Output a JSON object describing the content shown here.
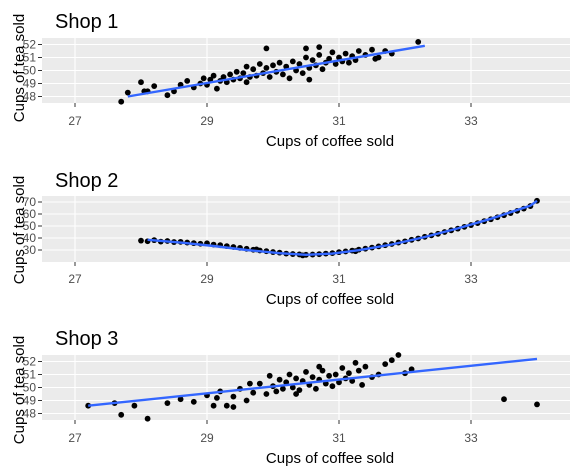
{
  "colors": {
    "panel": "#ebebeb",
    "grid": "#ffffff",
    "point": "#000000",
    "trend": "#3366ff",
    "tick_text": "#4d4d4d",
    "tick_mark": "#333333"
  },
  "chart_data": [
    {
      "type": "scatter",
      "title": "Shop 1",
      "xlabel": "Cups of coffee sold",
      "ylabel": "Cups of tea sold",
      "xlim": [
        26.5,
        34.5
      ],
      "ylim": [
        47.5,
        52.5
      ],
      "xticks": [
        27,
        29,
        31,
        33
      ],
      "yticks": [
        48,
        49,
        50,
        51,
        52
      ],
      "trend": "linear",
      "trend_points": [
        [
          27.8,
          48.0
        ],
        [
          32.3,
          51.9
        ]
      ],
      "points": [
        [
          27.7,
          47.6
        ],
        [
          27.8,
          48.3
        ],
        [
          28.0,
          49.1
        ],
        [
          28.1,
          48.4
        ],
        [
          28.2,
          48.8
        ],
        [
          28.4,
          48.1
        ],
        [
          28.5,
          48.4
        ],
        [
          28.6,
          48.9
        ],
        [
          28.7,
          49.2
        ],
        [
          28.8,
          48.7
        ],
        [
          28.9,
          49.0
        ],
        [
          28.95,
          49.4
        ],
        [
          29.0,
          48.9
        ],
        [
          29.05,
          49.3
        ],
        [
          29.1,
          49.6
        ],
        [
          29.15,
          48.6
        ],
        [
          29.2,
          49.2
        ],
        [
          29.25,
          49.5
        ],
        [
          29.3,
          49.1
        ],
        [
          29.35,
          49.7
        ],
        [
          29.4,
          49.3
        ],
        [
          29.45,
          49.9
        ],
        [
          29.5,
          49.4
        ],
        [
          29.55,
          49.8
        ],
        [
          29.6,
          50.3
        ],
        [
          29.65,
          49.5
        ],
        [
          29.7,
          50.1
        ],
        [
          29.75,
          49.6
        ],
        [
          29.8,
          50.5
        ],
        [
          29.85,
          49.8
        ],
        [
          29.9,
          50.2
        ],
        [
          29.95,
          49.5
        ],
        [
          30.0,
          50.4
        ],
        [
          30.05,
          49.9
        ],
        [
          30.1,
          50.6
        ],
        [
          30.15,
          49.7
        ],
        [
          30.2,
          50.3
        ],
        [
          30.25,
          49.4
        ],
        [
          30.3,
          50.7
        ],
        [
          30.35,
          50.0
        ],
        [
          30.4,
          50.5
        ],
        [
          30.45,
          49.8
        ],
        [
          30.5,
          51.0
        ],
        [
          30.55,
          50.2
        ],
        [
          30.6,
          50.8
        ],
        [
          30.65,
          50.4
        ],
        [
          30.7,
          51.2
        ],
        [
          30.75,
          50.1
        ],
        [
          30.8,
          50.6
        ],
        [
          30.85,
          50.9
        ],
        [
          30.9,
          51.4
        ],
        [
          30.95,
          50.5
        ],
        [
          31.0,
          51.0
        ],
        [
          31.05,
          50.7
        ],
        [
          31.1,
          51.3
        ],
        [
          31.15,
          50.6
        ],
        [
          31.2,
          51.1
        ],
        [
          31.25,
          50.8
        ],
        [
          31.3,
          51.5
        ],
        [
          31.4,
          51.2
        ],
        [
          31.5,
          51.6
        ],
        [
          31.55,
          50.9
        ],
        [
          31.6,
          51.0
        ],
        [
          31.7,
          51.5
        ],
        [
          31.8,
          51.3
        ],
        [
          32.2,
          52.2
        ],
        [
          29.9,
          51.7
        ],
        [
          30.5,
          51.7
        ],
        [
          30.7,
          51.8
        ],
        [
          30.55,
          49.3
        ],
        [
          28.05,
          48.4
        ],
        [
          29.6,
          49.1
        ]
      ]
    },
    {
      "type": "scatter",
      "title": "Shop 2",
      "xlabel": "Cups of coffee sold",
      "ylabel": "Cups of tea sold",
      "xlim": [
        26.5,
        34.5
      ],
      "ylim": [
        20,
        75
      ],
      "xticks": [
        27,
        29,
        31,
        33
      ],
      "yticks": [
        30,
        40,
        50,
        60,
        70
      ],
      "trend": "smooth",
      "trend_points": [
        [
          28.1,
          38.5
        ],
        [
          28.6,
          36.2
        ],
        [
          29.1,
          33.3
        ],
        [
          29.6,
          30.0
        ],
        [
          30.1,
          27.3
        ],
        [
          30.5,
          26.0
        ],
        [
          30.9,
          27.0
        ],
        [
          31.3,
          29.8
        ],
        [
          31.8,
          34.6
        ],
        [
          32.3,
          40.8
        ],
        [
          32.8,
          48.0
        ],
        [
          33.3,
          56.0
        ],
        [
          33.9,
          67.0
        ],
        [
          34.0,
          71.0
        ]
      ],
      "points": [
        [
          28.0,
          37.8
        ],
        [
          28.1,
          37.3
        ],
        [
          28.2,
          38.2
        ],
        [
          28.3,
          37.0
        ],
        [
          28.4,
          37.5
        ],
        [
          28.5,
          36.6
        ],
        [
          28.6,
          36.8
        ],
        [
          28.7,
          36.2
        ],
        [
          28.8,
          35.7
        ],
        [
          28.9,
          35.2
        ],
        [
          29.0,
          35.6
        ],
        [
          29.1,
          34.5
        ],
        [
          29.2,
          34.0
        ],
        [
          29.3,
          33.2
        ],
        [
          29.4,
          32.5
        ],
        [
          29.5,
          31.8
        ],
        [
          29.6,
          31.0
        ],
        [
          29.7,
          30.2
        ],
        [
          29.8,
          29.6
        ],
        [
          29.9,
          29.0
        ],
        [
          30.0,
          28.3
        ],
        [
          30.1,
          27.8
        ],
        [
          30.2,
          27.0
        ],
        [
          30.3,
          26.6
        ],
        [
          30.4,
          26.3
        ],
        [
          30.5,
          26.0
        ],
        [
          30.6,
          26.2
        ],
        [
          30.7,
          26.5
        ],
        [
          30.8,
          27.0
        ],
        [
          30.9,
          27.4
        ],
        [
          31.0,
          28.2
        ],
        [
          31.1,
          28.8
        ],
        [
          31.2,
          29.5
        ],
        [
          31.3,
          30.3
        ],
        [
          31.4,
          31.1
        ],
        [
          31.5,
          32.0
        ],
        [
          31.6,
          33.0
        ],
        [
          31.7,
          34.0
        ],
        [
          31.8,
          35.0
        ],
        [
          31.9,
          36.2
        ],
        [
          32.0,
          37.2
        ],
        [
          32.1,
          38.5
        ],
        [
          32.2,
          39.6
        ],
        [
          32.3,
          41.0
        ],
        [
          32.4,
          42.2
        ],
        [
          32.5,
          43.5
        ],
        [
          32.6,
          45.0
        ],
        [
          32.7,
          46.4
        ],
        [
          32.8,
          47.8
        ],
        [
          32.9,
          49.3
        ],
        [
          33.0,
          50.8
        ],
        [
          33.1,
          52.4
        ],
        [
          33.2,
          54.0
        ],
        [
          33.3,
          55.6
        ],
        [
          33.4,
          57.3
        ],
        [
          33.5,
          59.0
        ],
        [
          33.6,
          60.8
        ],
        [
          33.7,
          62.6
        ],
        [
          33.8,
          64.5
        ],
        [
          33.9,
          66.6
        ],
        [
          34.0,
          71.0
        ],
        [
          29.75,
          30.5
        ],
        [
          30.45,
          25.5
        ],
        [
          31.25,
          29.0
        ]
      ]
    },
    {
      "type": "scatter",
      "title": "Shop 3",
      "xlabel": "Cups of coffee sold",
      "ylabel": "Cups of tea sold",
      "xlim": [
        26.5,
        34.5
      ],
      "ylim": [
        47.5,
        52.5
      ],
      "xticks": [
        27,
        29,
        31,
        33
      ],
      "yticks": [
        48,
        49,
        50,
        51,
        52
      ],
      "trend": "linear",
      "trend_points": [
        [
          27.2,
          48.6
        ],
        [
          34.0,
          52.2
        ]
      ],
      "points": [
        [
          27.2,
          48.6
        ],
        [
          27.6,
          48.8
        ],
        [
          27.7,
          47.9
        ],
        [
          27.9,
          48.6
        ],
        [
          28.1,
          47.6
        ],
        [
          28.4,
          48.8
        ],
        [
          28.6,
          49.1
        ],
        [
          28.8,
          48.9
        ],
        [
          29.0,
          49.4
        ],
        [
          29.1,
          48.6
        ],
        [
          29.2,
          49.7
        ],
        [
          29.3,
          48.6
        ],
        [
          29.4,
          49.3
        ],
        [
          29.5,
          49.9
        ],
        [
          29.6,
          49.0
        ],
        [
          29.7,
          49.6
        ],
        [
          29.8,
          50.3
        ],
        [
          29.9,
          49.5
        ],
        [
          29.95,
          50.9
        ],
        [
          30.0,
          50.1
        ],
        [
          30.05,
          49.7
        ],
        [
          30.1,
          50.6
        ],
        [
          30.15,
          49.9
        ],
        [
          30.2,
          50.4
        ],
        [
          30.25,
          51.0
        ],
        [
          30.3,
          50.0
        ],
        [
          30.35,
          50.7
        ],
        [
          30.4,
          49.8
        ],
        [
          30.45,
          50.5
        ],
        [
          30.5,
          51.2
        ],
        [
          30.55,
          50.2
        ],
        [
          30.6,
          50.8
        ],
        [
          30.65,
          49.9
        ],
        [
          30.7,
          50.6
        ],
        [
          30.75,
          51.3
        ],
        [
          30.8,
          50.3
        ],
        [
          30.85,
          50.9
        ],
        [
          30.9,
          50.1
        ],
        [
          30.95,
          51.0
        ],
        [
          31.0,
          50.4
        ],
        [
          31.05,
          51.5
        ],
        [
          31.1,
          50.7
        ],
        [
          31.15,
          51.1
        ],
        [
          31.2,
          50.5
        ],
        [
          31.3,
          51.3
        ],
        [
          31.35,
          50.2
        ],
        [
          31.4,
          51.6
        ],
        [
          31.5,
          50.8
        ],
        [
          31.6,
          51.0
        ],
        [
          31.7,
          51.8
        ],
        [
          31.8,
          52.1
        ],
        [
          31.9,
          52.5
        ],
        [
          32.0,
          51.1
        ],
        [
          32.1,
          51.4
        ],
        [
          33.5,
          49.1
        ],
        [
          34.0,
          48.7
        ],
        [
          29.4,
          48.5
        ],
        [
          29.15,
          49.2
        ],
        [
          29.65,
          50.3
        ],
        [
          30.35,
          49.5
        ],
        [
          30.7,
          51.6
        ],
        [
          31.25,
          51.9
        ]
      ]
    }
  ]
}
